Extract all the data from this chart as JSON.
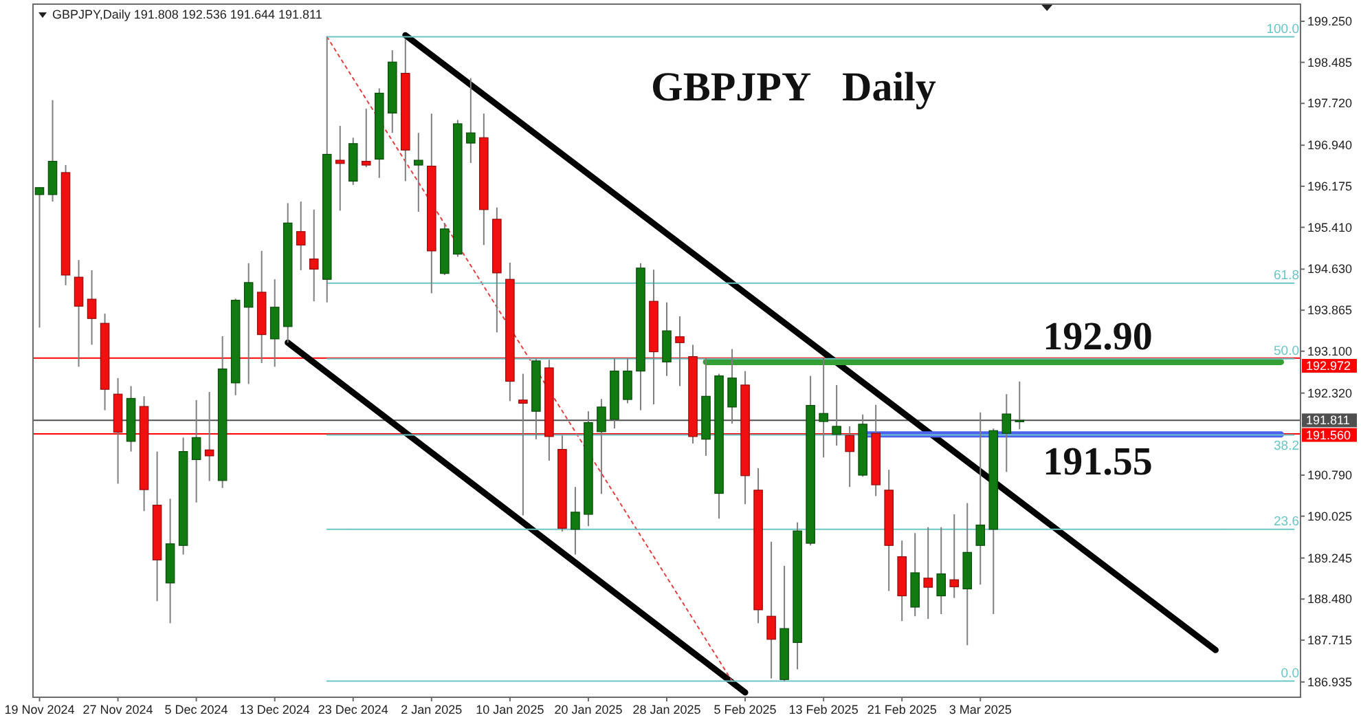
{
  "chart_data": {
    "type": "candlestick",
    "title": "GBPJPY Daily",
    "subtitle": "GBPJPY,Daily 191.808 192.536 191.644 191.811",
    "categories": [
      "19 Nov 2024",
      null,
      null,
      null,
      null,
      null,
      "27 Nov 2024",
      null,
      null,
      null,
      null,
      null,
      "5 Dec 2024",
      null,
      null,
      null,
      null,
      null,
      "13 Dec 2024",
      null,
      null,
      null,
      null,
      null,
      "23 Dec 2024",
      null,
      null,
      null,
      null,
      null,
      "2 Jan 2025",
      null,
      null,
      null,
      null,
      null,
      "10 Jan 2025",
      null,
      null,
      null,
      null,
      null,
      "20 Jan 2025",
      null,
      null,
      null,
      null,
      null,
      "28 Jan 2025",
      null,
      null,
      null,
      null,
      null,
      "5 Feb 2025",
      null,
      null,
      null,
      null,
      null,
      "13 Feb 2025",
      null,
      null,
      null,
      null,
      null,
      "21 Feb 2025",
      null,
      null,
      null,
      null,
      null,
      "3 Mar 2025",
      null,
      null,
      null,
      null,
      null,
      null,
      null,
      null,
      null,
      null,
      null,
      null,
      null,
      null,
      null,
      null,
      null,
      null,
      null,
      null,
      null,
      null,
      null,
      null
    ],
    "ohlc": [
      [
        196.02,
        196.15,
        193.54,
        196.15
      ],
      [
        196.02,
        197.78,
        195.89,
        196.64
      ],
      [
        196.43,
        196.57,
        194.33,
        194.52
      ],
      [
        194.48,
        194.8,
        192.81,
        193.94
      ],
      [
        194.07,
        194.61,
        193.22,
        193.71
      ],
      [
        193.62,
        193.8,
        192.0,
        192.39
      ],
      [
        192.3,
        192.6,
        190.63,
        191.59
      ],
      [
        191.42,
        192.45,
        191.23,
        192.22
      ],
      [
        192.07,
        192.26,
        190.12,
        190.52
      ],
      [
        190.23,
        191.23,
        188.44,
        189.21
      ],
      [
        188.78,
        190.35,
        188.03,
        189.51
      ],
      [
        189.48,
        191.49,
        189.31,
        191.23
      ],
      [
        191.08,
        192.19,
        190.28,
        191.49
      ],
      [
        191.26,
        192.34,
        190.68,
        191.15
      ],
      [
        190.69,
        193.38,
        190.55,
        192.77
      ],
      [
        192.51,
        194.08,
        192.28,
        194.05
      ],
      [
        193.92,
        194.74,
        192.49,
        194.38
      ],
      [
        194.2,
        194.97,
        192.88,
        193.41
      ],
      [
        193.33,
        194.44,
        192.81,
        193.92
      ],
      [
        193.56,
        195.86,
        193.26,
        195.49
      ],
      [
        195.33,
        195.89,
        194.61,
        195.08
      ],
      [
        194.82,
        195.74,
        194.03,
        194.63
      ],
      [
        194.44,
        198.96,
        194.01,
        196.77
      ],
      [
        196.66,
        197.3,
        195.72,
        196.6
      ],
      [
        196.27,
        197.08,
        196.2,
        196.97
      ],
      [
        196.64,
        197.62,
        196.53,
        196.57
      ],
      [
        196.68,
        198.0,
        196.33,
        197.91
      ],
      [
        197.54,
        198.71,
        197.17,
        198.49
      ],
      [
        198.28,
        198.92,
        196.27,
        196.85
      ],
      [
        196.57,
        197.17,
        195.7,
        196.66
      ],
      [
        196.55,
        197.53,
        194.18,
        194.97
      ],
      [
        194.55,
        195.49,
        194.52,
        195.38
      ],
      [
        194.91,
        197.41,
        194.86,
        197.34
      ],
      [
        196.98,
        198.19,
        196.61,
        197.17
      ],
      [
        197.08,
        197.53,
        195.08,
        195.74
      ],
      [
        195.56,
        195.78,
        193.45,
        194.56
      ],
      [
        194.44,
        194.75,
        192.17,
        192.54
      ],
      [
        192.19,
        192.68,
        190.04,
        192.13
      ],
      [
        191.98,
        192.96,
        191.46,
        192.92
      ],
      [
        192.79,
        192.94,
        191.06,
        191.51
      ],
      [
        191.27,
        191.53,
        189.74,
        189.8
      ],
      [
        189.78,
        190.57,
        189.31,
        190.1
      ],
      [
        190.06,
        191.98,
        189.84,
        191.77
      ],
      [
        191.6,
        192.21,
        190.44,
        192.06
      ],
      [
        191.83,
        192.98,
        191.66,
        192.73
      ],
      [
        192.2,
        192.98,
        192.13,
        192.73
      ],
      [
        192.73,
        194.74,
        192.0,
        194.65
      ],
      [
        194.03,
        194.62,
        192.11,
        193.09
      ],
      [
        192.9,
        194.01,
        192.64,
        193.48
      ],
      [
        193.37,
        193.75,
        192.45,
        193.26
      ],
      [
        193.0,
        193.22,
        191.38,
        191.51
      ],
      [
        191.46,
        192.97,
        191.15,
        192.26
      ],
      [
        190.45,
        192.68,
        189.98,
        192.64
      ],
      [
        192.06,
        193.14,
        191.75,
        192.6
      ],
      [
        192.47,
        192.73,
        190.25,
        190.78
      ],
      [
        190.51,
        190.92,
        188.03,
        188.28
      ],
      [
        188.16,
        189.55,
        187.0,
        187.73
      ],
      [
        186.98,
        189.1,
        186.95,
        187.93
      ],
      [
        187.67,
        189.91,
        187.17,
        189.75
      ],
      [
        189.52,
        192.64,
        189.48,
        192.09
      ],
      [
        191.79,
        192.97,
        191.12,
        191.94
      ],
      [
        191.55,
        192.47,
        191.34,
        191.7
      ],
      [
        191.53,
        191.7,
        190.57,
        191.23
      ],
      [
        190.79,
        191.92,
        190.76,
        191.74
      ],
      [
        191.57,
        192.1,
        190.4,
        190.61
      ],
      [
        190.51,
        190.89,
        188.63,
        189.48
      ],
      [
        189.27,
        189.57,
        188.07,
        188.54
      ],
      [
        188.33,
        189.71,
        188.16,
        188.97
      ],
      [
        188.87,
        189.82,
        188.11,
        188.7
      ],
      [
        188.54,
        189.82,
        188.2,
        188.95
      ],
      [
        188.84,
        190.06,
        188.5,
        188.71
      ],
      [
        188.67,
        190.27,
        187.62,
        189.35
      ],
      [
        189.48,
        191.96,
        188.75,
        189.86
      ],
      [
        189.78,
        191.66,
        188.2,
        191.62
      ],
      [
        191.57,
        192.3,
        190.85,
        191.93
      ],
      [
        191.808,
        192.536,
        191.644,
        191.811
      ],
      null,
      null,
      null,
      null,
      null,
      null,
      null,
      null,
      null,
      null,
      null,
      null,
      null,
      null,
      null,
      null,
      null,
      null,
      null,
      null,
      null
    ],
    "colors": [
      "#117a11",
      "#117a11",
      "#f01010",
      "#f01010",
      "#f01010",
      "#f01010",
      "#f01010",
      "#117a11",
      "#f01010",
      "#f01010",
      "#117a11",
      "#117a11",
      "#117a11",
      "#f01010",
      "#117a11",
      "#117a11",
      "#117a11",
      "#f01010",
      "#117a11",
      "#117a11",
      "#f01010",
      "#f01010",
      "#117a11",
      "#f01010",
      "#117a11",
      "#f01010",
      "#117a11",
      "#117a11",
      "#f01010",
      "#117a11",
      "#f01010",
      "#117a11",
      "#117a11",
      "#117a11",
      "#f01010",
      "#f01010",
      "#f01010",
      "#f01010",
      "#117a11",
      "#f01010",
      "#f01010",
      "#117a11",
      "#117a11",
      "#117a11",
      "#117a11",
      "#117a11",
      "#117a11",
      "#f01010",
      "#117a11",
      "#f01010",
      "#f01010",
      "#117a11",
      "#117a11",
      "#117a11",
      "#f01010",
      "#f01010",
      "#f01010",
      "#117a11",
      "#117a11",
      "#117a11",
      "#117a11",
      "#117a11",
      "#f01010",
      "#117a11",
      "#f01010",
      "#f01010",
      "#f01010",
      "#117a11",
      "#f01010",
      "#117a11",
      "#f01010",
      "#117a11",
      "#117a11",
      "#117a11",
      "#117a11",
      "#117a11",
      null,
      null,
      null,
      null,
      null,
      null,
      null,
      null,
      null,
      null,
      null,
      null,
      null,
      null,
      null,
      null,
      null,
      null,
      null,
      null,
      null
    ],
    "ylim": [
      186.65,
      199.57
    ],
    "yticks": [
      {
        "value": 186.935,
        "label": "186.935"
      },
      {
        "value": 187.715,
        "label": "187.715"
      },
      {
        "value": 188.48,
        "label": "188.480"
      },
      {
        "value": 189.245,
        "label": "189.245"
      },
      {
        "value": 190.025,
        "label": "190.025"
      },
      {
        "value": 190.79,
        "label": "190.790"
      },
      {
        "value": 192.32,
        "label": "192.320"
      },
      {
        "value": 193.1,
        "label": "193.100"
      },
      {
        "value": 193.865,
        "label": "193.865"
      },
      {
        "value": 194.63,
        "label": "194.630"
      },
      {
        "value": 195.41,
        "label": "195.410"
      },
      {
        "value": 196.175,
        "label": "196.175"
      },
      {
        "value": 196.94,
        "label": "196.940"
      },
      {
        "value": 197.72,
        "label": "197.720"
      },
      {
        "value": 198.485,
        "label": "198.485"
      },
      {
        "value": 199.25,
        "label": "199.250"
      }
    ],
    "series": [
      {
        "type": "line",
        "color": "#000000",
        "values": [
          null,
          null,
          null,
          null,
          null,
          null,
          null,
          null,
          null,
          null,
          null,
          null,
          null,
          null,
          null,
          null,
          null,
          null,
          null,
          null,
          null,
          null,
          null,
          null,
          null,
          null,
          null,
          null,
          198.99,
          null,
          null,
          null,
          null,
          null,
          null,
          null,
          null,
          null,
          null,
          null,
          null,
          null,
          null,
          null,
          null,
          null,
          null,
          null,
          null,
          null,
          null,
          null,
          null,
          null,
          null,
          null,
          null,
          null,
          null,
          null,
          null,
          null,
          null,
          null,
          null,
          null,
          null,
          null,
          null,
          null,
          null,
          null,
          null,
          null,
          null,
          null,
          null,
          null,
          null,
          null,
          null,
          null,
          null,
          null,
          null,
          null,
          null,
          null,
          null,
          null,
          187.53,
          null,
          null,
          null,
          null,
          null,
          null
        ]
      },
      {
        "type": "line",
        "color": "#000000",
        "values": [
          null,
          null,
          null,
          null,
          null,
          null,
          null,
          null,
          null,
          null,
          null,
          null,
          null,
          null,
          null,
          null,
          null,
          null,
          null,
          193.26,
          null,
          null,
          null,
          null,
          null,
          null,
          null,
          null,
          null,
          null,
          null,
          null,
          null,
          null,
          null,
          null,
          null,
          null,
          null,
          null,
          null,
          null,
          null,
          null,
          null,
          null,
          null,
          null,
          null,
          null,
          null,
          null,
          null,
          null,
          186.74,
          null,
          null,
          null,
          null,
          null,
          null,
          null,
          null,
          null,
          null,
          null,
          null,
          null,
          null,
          null,
          null,
          null,
          null,
          null,
          null,
          null,
          null,
          null,
          null,
          null,
          null,
          null,
          null,
          null,
          null,
          null,
          null,
          null,
          null,
          null,
          null,
          null,
          null,
          null,
          null,
          null,
          null
        ]
      },
      {
        "type": "line",
        "color": "#34a034",
        "values": [
          null,
          null,
          null,
          null,
          null,
          null,
          null,
          null,
          null,
          null,
          null,
          null,
          null,
          null,
          null,
          null,
          null,
          null,
          null,
          null,
          null,
          null,
          null,
          null,
          null,
          null,
          null,
          null,
          null,
          null,
          null,
          null,
          null,
          null,
          null,
          null,
          null,
          null,
          null,
          null,
          null,
          null,
          null,
          null,
          null,
          null,
          null,
          null,
          null,
          null,
          null,
          192.9,
          null,
          null,
          null,
          null,
          null,
          null,
          null,
          null,
          null,
          null,
          null,
          null,
          null,
          null,
          null,
          null,
          null,
          null,
          null,
          null,
          null,
          null,
          null,
          null,
          null,
          null,
          null,
          null,
          null,
          null,
          null,
          null,
          null,
          null,
          null,
          null,
          null,
          null,
          null,
          null,
          null,
          null,
          null,
          192.9,
          null
        ]
      },
      {
        "type": "line",
        "color": "#4a62ee",
        "values": [
          null,
          null,
          null,
          null,
          null,
          null,
          null,
          null,
          null,
          null,
          null,
          null,
          null,
          null,
          null,
          null,
          null,
          null,
          null,
          null,
          null,
          null,
          null,
          null,
          null,
          null,
          null,
          null,
          null,
          null,
          null,
          null,
          null,
          null,
          null,
          null,
          null,
          null,
          null,
          null,
          null,
          null,
          null,
          null,
          null,
          null,
          null,
          null,
          null,
          null,
          null,
          null,
          null,
          null,
          null,
          null,
          null,
          null,
          null,
          null,
          null,
          null,
          null,
          191.55,
          null,
          null,
          null,
          null,
          null,
          null,
          null,
          null,
          null,
          null,
          null,
          null,
          null,
          null,
          null,
          null,
          null,
          null,
          null,
          null,
          null,
          null,
          null,
          null,
          null,
          null,
          null,
          null,
          null,
          null,
          null,
          191.55,
          null
        ]
      },
      {
        "type": "line",
        "color": "#e04040",
        "line_style": "dotted",
        "values": [
          null,
          null,
          null,
          null,
          null,
          null,
          null,
          null,
          null,
          null,
          null,
          null,
          null,
          null,
          null,
          null,
          null,
          null,
          null,
          null,
          null,
          null,
          198.96,
          null,
          null,
          null,
          null,
          null,
          null,
          null,
          null,
          null,
          null,
          null,
          null,
          null,
          null,
          null,
          null,
          null,
          null,
          null,
          null,
          null,
          null,
          null,
          null,
          null,
          null,
          null,
          null,
          null,
          null,
          186.95,
          null,
          null,
          null,
          null,
          null,
          null,
          null,
          null,
          null,
          null,
          null,
          null,
          null,
          null,
          null,
          null,
          null,
          null,
          null,
          null,
          null,
          null,
          null,
          null,
          null,
          null,
          null,
          null,
          null,
          null,
          null,
          null,
          null,
          null,
          null,
          null,
          null,
          null,
          null,
          null,
          null,
          null,
          null
        ]
      },
      {
        "type": "line",
        "name": "100.0",
        "color": "#6cc5c5",
        "values": [
          null,
          null,
          null,
          null,
          null,
          null,
          null,
          null,
          null,
          null,
          null,
          null,
          null,
          null,
          null,
          null,
          null,
          null,
          null,
          null,
          null,
          null,
          198.96,
          null,
          null,
          null,
          null,
          null,
          null,
          null,
          null,
          null,
          null,
          null,
          null,
          null,
          null,
          null,
          null,
          null,
          null,
          null,
          null,
          null,
          null,
          null,
          null,
          null,
          null,
          null,
          null,
          null,
          null,
          null,
          null,
          null,
          null,
          null,
          null,
          null,
          null,
          null,
          null,
          null,
          null,
          null,
          null,
          null,
          null,
          null,
          null,
          null,
          null,
          null,
          null,
          null,
          null,
          null,
          null,
          null,
          null,
          null,
          null,
          null,
          null,
          null,
          null,
          null,
          null,
          null,
          null,
          null,
          null,
          null,
          null,
          null,
          198.96
        ]
      },
      {
        "type": "line",
        "name": "61.8",
        "color": "#6cc5c5",
        "values": [
          null,
          null,
          null,
          null,
          null,
          null,
          null,
          null,
          null,
          null,
          null,
          null,
          null,
          null,
          null,
          null,
          null,
          null,
          null,
          null,
          null,
          null,
          194.37,
          null,
          null,
          null,
          null,
          null,
          null,
          null,
          null,
          null,
          null,
          null,
          null,
          null,
          null,
          null,
          null,
          null,
          null,
          null,
          null,
          null,
          null,
          null,
          null,
          null,
          null,
          null,
          null,
          null,
          null,
          null,
          null,
          null,
          null,
          null,
          null,
          null,
          null,
          null,
          null,
          null,
          null,
          null,
          null,
          null,
          null,
          null,
          null,
          null,
          null,
          null,
          null,
          null,
          null,
          null,
          null,
          null,
          null,
          null,
          null,
          null,
          null,
          null,
          null,
          null,
          null,
          null,
          null,
          null,
          null,
          null,
          null,
          null,
          194.37
        ]
      },
      {
        "type": "line",
        "name": "50.0",
        "color": "#6cc5c5",
        "values": [
          null,
          null,
          null,
          null,
          null,
          null,
          null,
          null,
          null,
          null,
          null,
          null,
          null,
          null,
          null,
          null,
          null,
          null,
          null,
          null,
          null,
          null,
          192.96,
          null,
          null,
          null,
          null,
          null,
          null,
          null,
          null,
          null,
          null,
          null,
          null,
          null,
          null,
          null,
          null,
          null,
          null,
          null,
          null,
          null,
          null,
          null,
          null,
          null,
          null,
          null,
          null,
          null,
          null,
          null,
          null,
          null,
          null,
          null,
          null,
          null,
          null,
          null,
          null,
          null,
          null,
          null,
          null,
          null,
          null,
          null,
          null,
          null,
          null,
          null,
          null,
          null,
          null,
          null,
          null,
          null,
          null,
          null,
          null,
          null,
          null,
          null,
          null,
          null,
          null,
          null,
          null,
          null,
          null,
          null,
          null,
          null,
          192.96
        ]
      },
      {
        "type": "line",
        "name": "38.2",
        "color": "#6cc5c5",
        "values": [
          null,
          null,
          null,
          null,
          null,
          null,
          null,
          null,
          null,
          null,
          null,
          null,
          null,
          null,
          null,
          null,
          null,
          null,
          null,
          null,
          null,
          null,
          191.54,
          null,
          null,
          null,
          null,
          null,
          null,
          null,
          null,
          null,
          null,
          null,
          null,
          null,
          null,
          null,
          null,
          null,
          null,
          null,
          null,
          null,
          null,
          null,
          null,
          null,
          null,
          null,
          null,
          null,
          null,
          null,
          null,
          null,
          null,
          null,
          null,
          null,
          null,
          null,
          null,
          null,
          null,
          null,
          null,
          null,
          null,
          null,
          null,
          null,
          null,
          null,
          null,
          null,
          null,
          null,
          null,
          null,
          null,
          null,
          null,
          null,
          null,
          null,
          null,
          null,
          null,
          null,
          null,
          null,
          null,
          null,
          null,
          null,
          191.54
        ]
      },
      {
        "type": "line",
        "name": "23.6",
        "color": "#6cc5c5",
        "values": [
          null,
          null,
          null,
          null,
          null,
          null,
          null,
          null,
          null,
          null,
          null,
          null,
          null,
          null,
          null,
          null,
          null,
          null,
          null,
          null,
          null,
          null,
          189.78,
          null,
          null,
          null,
          null,
          null,
          null,
          null,
          null,
          null,
          null,
          null,
          null,
          null,
          null,
          null,
          null,
          null,
          null,
          null,
          null,
          null,
          null,
          null,
          null,
          null,
          null,
          null,
          null,
          null,
          null,
          null,
          null,
          null,
          null,
          null,
          null,
          null,
          null,
          null,
          null,
          null,
          null,
          null,
          null,
          null,
          null,
          null,
          null,
          null,
          null,
          null,
          null,
          null,
          null,
          null,
          null,
          null,
          null,
          null,
          null,
          null,
          null,
          null,
          null,
          null,
          null,
          null,
          null,
          null,
          null,
          null,
          null,
          null,
          189.78
        ]
      },
      {
        "type": "line",
        "name": "0.0",
        "color": "#6cc5c5",
        "values": [
          null,
          null,
          null,
          null,
          null,
          null,
          null,
          null,
          null,
          null,
          null,
          null,
          null,
          null,
          null,
          null,
          null,
          null,
          null,
          null,
          null,
          null,
          186.95,
          null,
          null,
          null,
          null,
          null,
          null,
          null,
          null,
          null,
          null,
          null,
          null,
          null,
          null,
          null,
          null,
          null,
          null,
          null,
          null,
          null,
          null,
          null,
          null,
          null,
          null,
          null,
          null,
          null,
          null,
          null,
          null,
          null,
          null,
          null,
          null,
          null,
          null,
          null,
          null,
          null,
          null,
          null,
          null,
          null,
          null,
          null,
          null,
          null,
          null,
          null,
          null,
          null,
          null,
          null,
          null,
          null,
          null,
          null,
          null,
          null,
          null,
          null,
          null,
          null,
          null,
          null,
          null,
          null,
          null,
          null,
          null,
          null,
          186.95
        ]
      }
    ],
    "ref_lines": [
      {
        "axis": "y",
        "value": 192.972,
        "label": "192.972",
        "color": "#ff0000"
      },
      {
        "axis": "y",
        "value": 191.811,
        "label": "191.811",
        "color": "#505050"
      },
      {
        "axis": "y",
        "value": 191.56,
        "label": "191.560",
        "color": "#ff0000"
      }
    ],
    "annotations": [
      {
        "text": "192.90",
        "y": 192.9
      },
      {
        "text": "191.55",
        "y": 191.55
      }
    ]
  }
}
